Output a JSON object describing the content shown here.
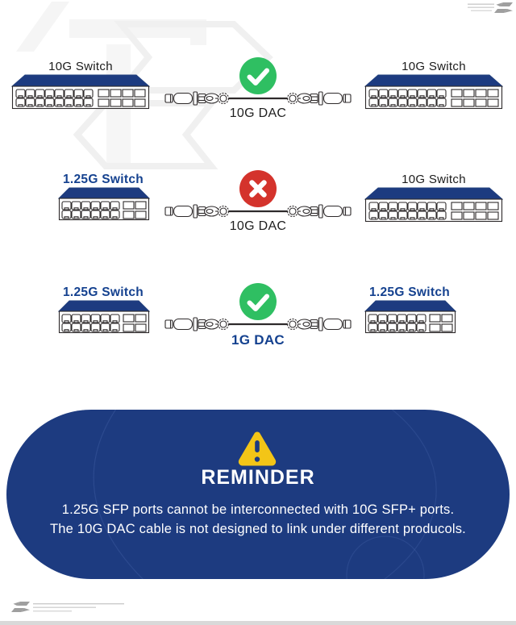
{
  "colors": {
    "navy": "#1d3b80",
    "blue_text": "#14418f",
    "green": "#2fbf62",
    "red": "#d4332c",
    "gold": "#f3c517",
    "line_art": "#2e2a2b",
    "logo_gray": "#9f9f9f",
    "logo_line_gray": "#cbcbcb"
  },
  "rows": [
    {
      "left": {
        "label": "10G Switch",
        "highlight": false,
        "size": "large"
      },
      "icon": "check",
      "cable": {
        "label": "10G DAC",
        "highlight": false
      },
      "right": {
        "label": "10G Switch",
        "highlight": false,
        "size": "large"
      }
    },
    {
      "left": {
        "label": "1.25G Switch",
        "highlight": true,
        "size": "small"
      },
      "icon": "cross",
      "cable": {
        "label": "10G DAC",
        "highlight": false
      },
      "right": {
        "label": "10G Switch",
        "highlight": false,
        "size": "large"
      }
    },
    {
      "left": {
        "label": "1.25G Switch",
        "highlight": true,
        "size": "small"
      },
      "icon": "check",
      "cable": {
        "label": "1G DAC",
        "highlight": true
      },
      "right": {
        "label": "1.25G Switch",
        "highlight": true,
        "size": "small"
      }
    }
  ],
  "reminder": {
    "title": "REMINDER",
    "line1": "1.25G SFP ports cannot be interconnected with 10G SFP+ ports.",
    "line2": "The 10G DAC cable is not designed to link under different producols."
  },
  "icons": {
    "pass": "check-icon",
    "fail": "cross-icon",
    "warning": "warning-triangle-icon",
    "brand": "swap-arrows-logo-icon"
  }
}
